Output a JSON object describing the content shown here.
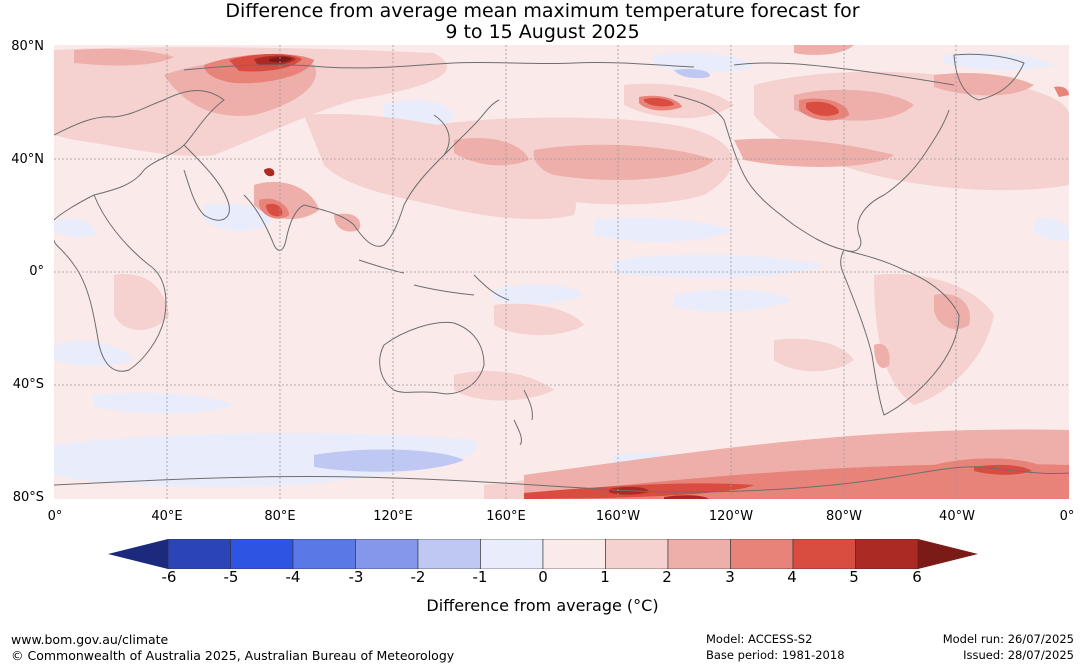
{
  "title": {
    "line1": "Difference from average mean maximum temperature forecast for",
    "line2": "9 to 15 August 2025"
  },
  "map": {
    "lat_labels": [
      "80°N",
      "40°N",
      "0°",
      "40°S",
      "80°S"
    ],
    "lon_labels": [
      "0°",
      "40°E",
      "80°E",
      "120°E",
      "160°E",
      "160°W",
      "120°W",
      "80°W",
      "40°W",
      "0°"
    ]
  },
  "colorbar": {
    "ticks": [
      "-6",
      "-5",
      "-4",
      "-3",
      "-2",
      "-1",
      "0",
      "1",
      "2",
      "3",
      "4",
      "5",
      "6"
    ],
    "colors": [
      "#1b2a7d",
      "#2b45b9",
      "#2e54e4",
      "#5a78e6",
      "#8497eb",
      "#bfc7f3",
      "#e9ecfb",
      "#fbeaea",
      "#f5d1d0",
      "#eeaea9",
      "#e78379",
      "#d94c40",
      "#ab2a23",
      "#7a1b17"
    ],
    "label": "Difference from average (°C)"
  },
  "footer": {
    "url": "www.bom.gov.au/climate",
    "copyright": "© Commonwealth of Australia 2025, Australian Bureau of Meteorology",
    "model": "Model: ACCESS-S2",
    "base_period": "Base period: 1981-2018",
    "model_run": "Model run: 26/07/2025",
    "issued": "Issued: 28/07/2025"
  }
}
